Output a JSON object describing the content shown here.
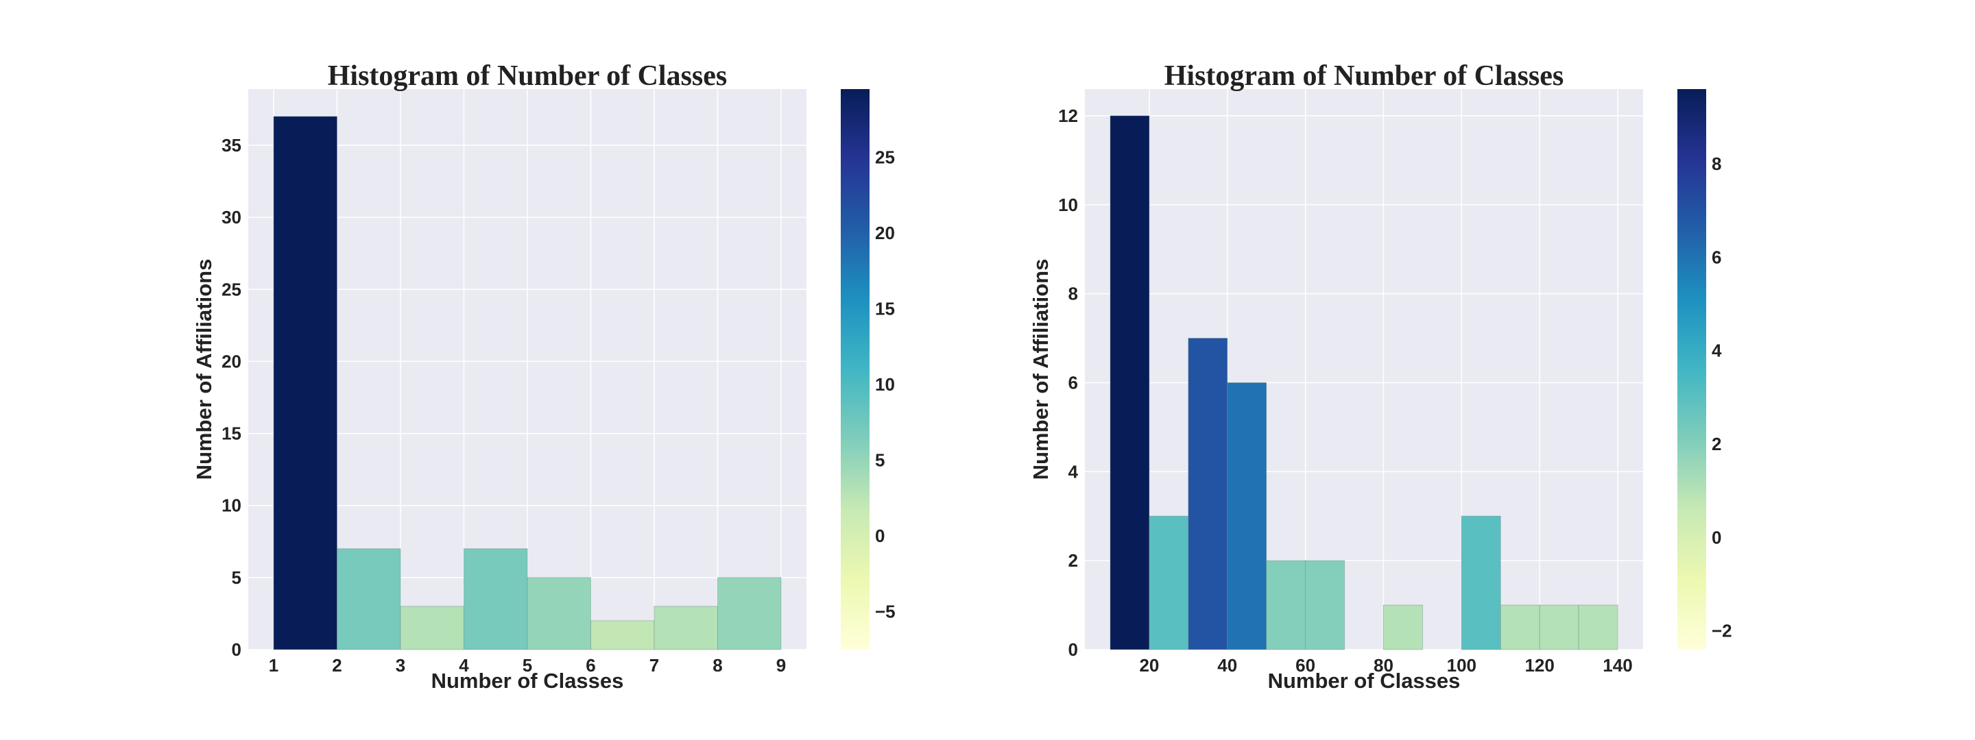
{
  "chart_data": [
    {
      "type": "bar",
      "title": "Histogram of Number of Classes",
      "xlabel": "Number of Classes",
      "ylabel": "Number of Affiliations",
      "bin_edges": [
        1,
        2,
        3,
        4,
        5,
        6,
        7,
        8,
        9
      ],
      "values": [
        37,
        7,
        3,
        7,
        5,
        2,
        3,
        5
      ],
      "xlim": [
        0.6,
        9.4
      ],
      "ylim": [
        0,
        38.9
      ],
      "xticks": [
        1,
        2,
        3,
        4,
        5,
        6,
        7,
        8,
        9
      ],
      "yticks": [
        0,
        5,
        10,
        15,
        20,
        25,
        30,
        35
      ],
      "colorbar": {
        "cmap": "YlGnBu",
        "range": [
          -7.5,
          29.5
        ],
        "ticks": [
          "−5",
          "0",
          "5",
          "10",
          "15",
          "20",
          "25"
        ],
        "tick_values": [
          -5,
          0,
          5,
          10,
          15,
          20,
          25
        ]
      },
      "grid": true,
      "background": "#eaeaf2"
    },
    {
      "type": "bar",
      "title": "Histogram of Number of Classes",
      "xlabel": "Number of Classes",
      "ylabel": "Number of Affiliations",
      "bin_edges": [
        10,
        20,
        30,
        40,
        50,
        60,
        70,
        80,
        90,
        100,
        110,
        120,
        130,
        140
      ],
      "values": [
        12,
        3,
        7,
        6,
        2,
        2,
        0,
        1,
        0,
        3,
        1,
        1,
        1
      ],
      "xlim": [
        3.5,
        146.5
      ],
      "ylim": [
        0,
        12.6
      ],
      "xticks": [
        20,
        40,
        60,
        80,
        100,
        120,
        140
      ],
      "yticks": [
        0,
        2,
        4,
        6,
        8,
        10,
        12
      ],
      "colorbar": {
        "cmap": "YlGnBu",
        "range": [
          -2.4,
          9.6
        ],
        "ticks": [
          "−2",
          "0",
          "2",
          "4",
          "6",
          "8"
        ],
        "tick_values": [
          -2,
          0,
          2,
          4,
          6,
          8
        ]
      },
      "grid": true,
      "background": "#eaeaf2"
    }
  ]
}
